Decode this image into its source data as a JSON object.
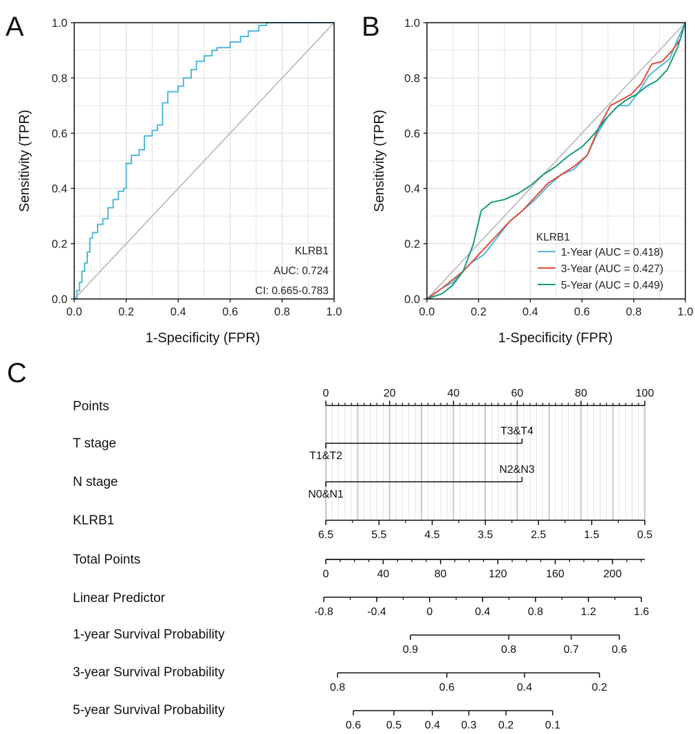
{
  "colors": {
    "oneYear": "#4fb8d8",
    "threeYear": "#e2493a",
    "fiveYear": "#149a7e",
    "single": "#4fb8d8",
    "diag": "#bdbdbd",
    "grid": "#e4e4e4",
    "axis": "#111111"
  },
  "panels": {
    "A": "A",
    "B": "B",
    "C": "C"
  },
  "chart_data": [
    {
      "type": "line",
      "panel": "A",
      "xlabel": "1-Specificity (FPR)",
      "ylabel": "Sensitivity (TPR)",
      "xlim": [
        0,
        1
      ],
      "ylim": [
        0,
        1
      ],
      "grid": true,
      "ticks": [
        "0.0",
        "0.2",
        "0.4",
        "0.6",
        "0.8",
        "1.0"
      ],
      "legend": {
        "placement": "bottom-right",
        "gene": "KLRB1",
        "auc": "AUC: 0.724",
        "ci": "CI: 0.665-0.783"
      },
      "series": [
        {
          "name": "KLRB1",
          "x": [
            0,
            0.01,
            0.01,
            0.02,
            0.02,
            0.03,
            0.03,
            0.04,
            0.04,
            0.05,
            0.05,
            0.06,
            0.06,
            0.07,
            0.07,
            0.09,
            0.09,
            0.11,
            0.11,
            0.13,
            0.13,
            0.15,
            0.15,
            0.17,
            0.17,
            0.19,
            0.19,
            0.2,
            0.2,
            0.22,
            0.22,
            0.25,
            0.25,
            0.27,
            0.27,
            0.3,
            0.3,
            0.32,
            0.32,
            0.34,
            0.34,
            0.36,
            0.36,
            0.4,
            0.4,
            0.42,
            0.42,
            0.45,
            0.45,
            0.47,
            0.47,
            0.5,
            0.5,
            0.53,
            0.53,
            0.55,
            0.55,
            0.6,
            0.6,
            0.64,
            0.64,
            0.67,
            0.67,
            0.71,
            0.71,
            0.74,
            0.74,
            1
          ],
          "y": [
            0,
            0,
            0.03,
            0.03,
            0.06,
            0.06,
            0.1,
            0.1,
            0.13,
            0.13,
            0.17,
            0.17,
            0.22,
            0.22,
            0.24,
            0.24,
            0.27,
            0.27,
            0.29,
            0.29,
            0.33,
            0.33,
            0.36,
            0.36,
            0.39,
            0.39,
            0.4,
            0.4,
            0.49,
            0.49,
            0.52,
            0.52,
            0.54,
            0.54,
            0.59,
            0.59,
            0.61,
            0.61,
            0.63,
            0.63,
            0.71,
            0.71,
            0.75,
            0.75,
            0.77,
            0.77,
            0.8,
            0.8,
            0.83,
            0.83,
            0.86,
            0.86,
            0.88,
            0.88,
            0.9,
            0.9,
            0.91,
            0.91,
            0.93,
            0.93,
            0.95,
            0.95,
            0.97,
            0.97,
            0.99,
            0.99,
            1,
            1
          ]
        }
      ]
    },
    {
      "type": "line",
      "panel": "B",
      "xlabel": "1-Specificity (FPR)",
      "ylabel": "Sensitivity (TPR)",
      "xlim": [
        0,
        1
      ],
      "ylim": [
        0,
        1
      ],
      "grid": true,
      "ticks": [
        "0.0",
        "0.2",
        "0.4",
        "0.6",
        "0.8",
        "1.0"
      ],
      "legend": {
        "placement": "bottom-right",
        "title": "KLRB1"
      },
      "series": [
        {
          "name": "1-Year (AUC = 0.418)",
          "x": [
            0,
            0.03,
            0.06,
            0.1,
            0.14,
            0.17,
            0.22,
            0.27,
            0.32,
            0.37,
            0.42,
            0.47,
            0.52,
            0.57,
            0.62,
            0.66,
            0.7,
            0.74,
            0.78,
            0.82,
            0.86,
            0.9,
            0.94,
            0.97,
            1
          ],
          "y": [
            0,
            0.02,
            0.04,
            0.06,
            0.1,
            0.13,
            0.16,
            0.22,
            0.28,
            0.32,
            0.36,
            0.41,
            0.45,
            0.47,
            0.52,
            0.6,
            0.66,
            0.7,
            0.7,
            0.75,
            0.81,
            0.84,
            0.87,
            0.94,
            1
          ]
        },
        {
          "name": "3-Year (AUC = 0.427)",
          "x": [
            0,
            0.03,
            0.06,
            0.1,
            0.14,
            0.18,
            0.22,
            0.27,
            0.32,
            0.37,
            0.42,
            0.47,
            0.52,
            0.57,
            0.62,
            0.67,
            0.71,
            0.75,
            0.79,
            0.83,
            0.87,
            0.91,
            0.95,
            0.98,
            1
          ],
          "y": [
            0,
            0.02,
            0.04,
            0.07,
            0.1,
            0.14,
            0.18,
            0.23,
            0.28,
            0.32,
            0.37,
            0.42,
            0.45,
            0.48,
            0.52,
            0.63,
            0.7,
            0.72,
            0.74,
            0.78,
            0.85,
            0.86,
            0.9,
            0.94,
            1
          ]
        },
        {
          "name": "5-Year (AUC = 0.449)",
          "x": [
            0,
            0.03,
            0.06,
            0.1,
            0.14,
            0.18,
            0.21,
            0.25,
            0.3,
            0.35,
            0.4,
            0.45,
            0.5,
            0.55,
            0.6,
            0.65,
            0.69,
            0.73,
            0.77,
            0.81,
            0.85,
            0.89,
            0.93,
            0.97,
            1
          ],
          "y": [
            0,
            0.01,
            0.02,
            0.05,
            0.1,
            0.2,
            0.32,
            0.35,
            0.36,
            0.38,
            0.41,
            0.45,
            0.48,
            0.52,
            0.55,
            0.6,
            0.65,
            0.69,
            0.72,
            0.74,
            0.77,
            0.79,
            0.83,
            0.91,
            1
          ]
        }
      ]
    }
  ],
  "nomogram": {
    "rows": [
      {
        "key": "points",
        "label": "Points",
        "ticks": [
          "0",
          "20",
          "40",
          "60",
          "80",
          "100"
        ]
      },
      {
        "key": "t",
        "label": "T stage",
        "low": "T1&T2",
        "high": "T3&T4"
      },
      {
        "key": "n",
        "label": "N stage",
        "low": "N0&N1",
        "high": "N2&N3"
      },
      {
        "key": "klrb1",
        "label": "KLRB1",
        "ticks": [
          "6.5",
          "5.5",
          "4.5",
          "3.5",
          "2.5",
          "1.5",
          "0.5"
        ]
      },
      {
        "key": "total",
        "label": "Total Points",
        "ticks": [
          "0",
          "40",
          "80",
          "120",
          "160",
          "200"
        ]
      },
      {
        "key": "lp",
        "label": "Linear Predictor",
        "ticks": [
          "-0.8",
          "-0.4",
          "0",
          "0.4",
          "0.8",
          "1.2",
          "1.6"
        ]
      },
      {
        "key": "s1",
        "label": "1-year Survival Probability",
        "ticks": [
          "0.9",
          "0.8",
          "0.7",
          "0.6"
        ]
      },
      {
        "key": "s3",
        "label": "3-year Survival Probability",
        "ticks": [
          "0.8",
          "0.6",
          "0.4",
          "0.2"
        ]
      },
      {
        "key": "s5",
        "label": "5-year Survival Probability",
        "ticks": [
          "0.6",
          "0.5",
          "0.4",
          "0.3",
          "0.2",
          "0.1"
        ]
      }
    ]
  }
}
